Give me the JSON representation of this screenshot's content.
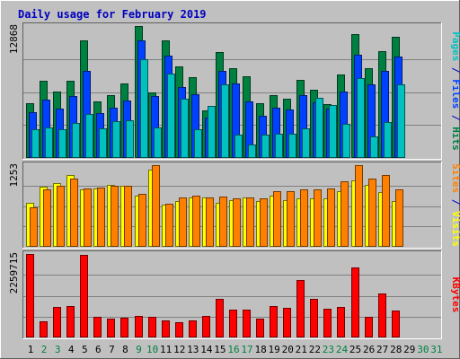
{
  "title": "Daily usage for February 2019",
  "colors": {
    "background": "#c0c0c0",
    "title": "#0000c0",
    "pages": "#00c0c0",
    "files": "#0040ff",
    "hits": "#008040",
    "visits": "#ffff00",
    "sites": "#ff8000",
    "kbytes": "#ff0000",
    "weekday_label": "#000000",
    "weekend_label": "#008040",
    "separator": "#0000c0"
  },
  "chart_data": [
    {
      "type": "bar",
      "categories": [
        "1",
        "2",
        "3",
        "4",
        "5",
        "6",
        "7",
        "8",
        "9",
        "10",
        "11",
        "12",
        "13",
        "14",
        "15",
        "16",
        "17",
        "18",
        "19",
        "20",
        "21",
        "22",
        "23",
        "24",
        "25",
        "26",
        "27",
        "28",
        "29",
        "30",
        "31"
      ],
      "ylabel": "Pages / Files / Hits",
      "max_label": "12868",
      "ylim": [
        0,
        12868
      ],
      "series": [
        {
          "name": "Hits",
          "values": [
            5350,
            7550,
            6450,
            7550,
            11450,
            5550,
            6150,
            7250,
            12868,
            6350,
            11450,
            8950,
            7850,
            4650,
            10350,
            8750,
            7950,
            5350,
            6150,
            5750,
            7650,
            6650,
            5250,
            8150,
            12100,
            8750,
            10450,
            11800,
            0,
            0,
            0
          ]
        },
        {
          "name": "Files",
          "values": [
            4500,
            5700,
            4800,
            6000,
            8450,
            4400,
            4900,
            5600,
            11450,
            6000,
            9950,
            6950,
            6200,
            3900,
            8450,
            7250,
            5500,
            4150,
            4900,
            4750,
            6150,
            5450,
            4850,
            6450,
            10100,
            7150,
            8450,
            9900,
            0,
            0,
            0
          ]
        },
        {
          "name": "Pages",
          "values": [
            2800,
            2950,
            2800,
            3450,
            4300,
            2900,
            3550,
            3650,
            9650,
            3000,
            8250,
            5750,
            2800,
            5100,
            7150,
            2300,
            1350,
            2300,
            2350,
            2350,
            2850,
            5900,
            5150,
            3300,
            7800,
            2100,
            3500,
            7200,
            0,
            0,
            0
          ]
        }
      ]
    },
    {
      "type": "bar",
      "categories": [
        "1",
        "2",
        "3",
        "4",
        "5",
        "6",
        "7",
        "8",
        "9",
        "10",
        "11",
        "12",
        "13",
        "14",
        "15",
        "16",
        "17",
        "18",
        "19",
        "20",
        "21",
        "22",
        "23",
        "24",
        "25",
        "26",
        "27",
        "28",
        "29",
        "30",
        "31"
      ],
      "ylabel": "Sites / Visits",
      "max_label": "1253",
      "ylim": [
        0,
        1253
      ],
      "series": [
        {
          "name": "Visits",
          "values": [
            680,
            925,
            975,
            1095,
            875,
            900,
            955,
            940,
            780,
            1190,
            650,
            700,
            755,
            760,
            670,
            710,
            760,
            700,
            780,
            720,
            750,
            750,
            750,
            860,
            1020,
            955,
            845,
            700,
            0,
            0,
            0
          ]
        },
        {
          "name": "Sites",
          "values": [
            600,
            880,
            930,
            1050,
            890,
            910,
            930,
            930,
            810,
            1253,
            660,
            760,
            790,
            760,
            770,
            740,
            760,
            740,
            850,
            850,
            880,
            880,
            900,
            1000,
            1253,
            1050,
            1100,
            880,
            0,
            0,
            0
          ]
        }
      ]
    },
    {
      "type": "bar",
      "categories": [
        "1",
        "2",
        "3",
        "4",
        "5",
        "6",
        "7",
        "8",
        "9",
        "10",
        "11",
        "12",
        "13",
        "14",
        "15",
        "16",
        "17",
        "18",
        "19",
        "20",
        "21",
        "22",
        "23",
        "24",
        "25",
        "26",
        "27",
        "28",
        "29",
        "30",
        "31"
      ],
      "ylabel": "KBytes",
      "max_label": "2259715",
      "ylim": [
        0,
        2259715
      ],
      "series": [
        {
          "name": "KBytes",
          "values": [
            2259715,
            430000,
            820000,
            860000,
            2230000,
            560000,
            500000,
            540000,
            580000,
            570000,
            460000,
            410000,
            470000,
            580000,
            1050000,
            750000,
            760000,
            520000,
            860000,
            800000,
            1560000,
            1040000,
            780000,
            830000,
            1890000,
            560000,
            1180000,
            740000,
            0,
            0,
            0
          ]
        }
      ]
    }
  ],
  "weekend_days": [
    2,
    3,
    9,
    10,
    16,
    17,
    23,
    24,
    30,
    31
  ]
}
